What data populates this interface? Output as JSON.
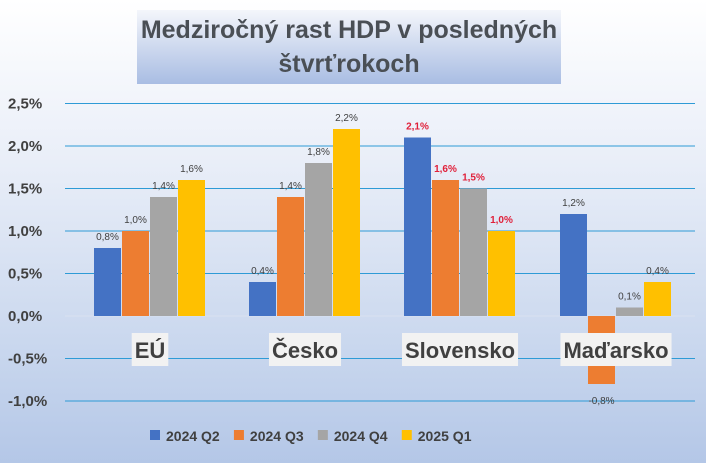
{
  "chart_data": {
    "type": "bar",
    "title": "Medziročný rast HDP v posledných štvrťrokoch",
    "categories": [
      "EÚ",
      "Česko",
      "Slovensko",
      "Maďarsko"
    ],
    "series": [
      {
        "name": "2024 Q2",
        "color": "#4472c4",
        "values": [
          0.8,
          0.4,
          2.1,
          1.2
        ]
      },
      {
        "name": "2024 Q3",
        "color": "#ed7d31",
        "values": [
          1.0,
          1.4,
          1.6,
          -0.8
        ]
      },
      {
        "name": "2024 Q4",
        "color": "#a5a5a5",
        "values": [
          1.4,
          1.8,
          1.5,
          0.1
        ]
      },
      {
        "name": "2025 Q1",
        "color": "#ffc000",
        "values": [
          1.6,
          2.2,
          1.0,
          0.4
        ]
      }
    ],
    "highlighted_category": "Slovensko",
    "highlight_label_color": "#e0203a",
    "ylim": [
      -1.0,
      2.5
    ],
    "yticks": [
      "-1,0%",
      "-0,5%",
      "0,0%",
      "0,5%",
      "1,0%",
      "1,5%",
      "2,0%",
      "2,5%"
    ],
    "grid": true,
    "gridline_color": "#2e9bd6",
    "legend": "bottom",
    "xlabel": "",
    "ylabel": ""
  }
}
